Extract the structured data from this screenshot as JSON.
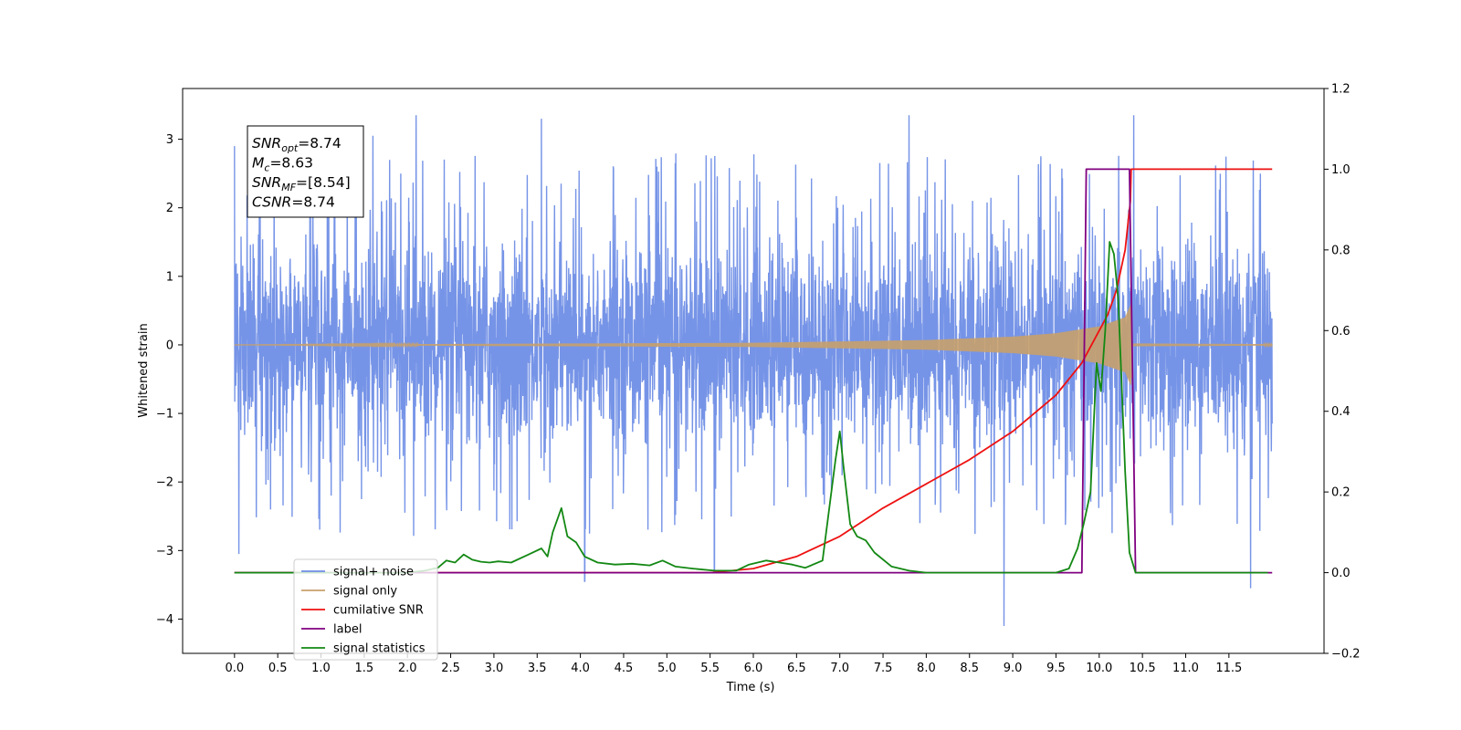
{
  "chart_data": {
    "type": "line",
    "title": "",
    "xlabel": "Time (s)",
    "ylabel": "Whitened strain",
    "xlim": [
      -0.6,
      12.6
    ],
    "ylim": [
      -4.5,
      3.74
    ],
    "ylim_right": [
      -0.2,
      1.2
    ],
    "grid": false,
    "x_ticks": [
      0.0,
      0.5,
      1.0,
      1.5,
      2.0,
      2.5,
      3.0,
      3.5,
      4.0,
      4.5,
      5.0,
      5.5,
      6.0,
      6.5,
      7.0,
      7.5,
      8.0,
      8.5,
      9.0,
      9.5,
      10.0,
      10.5,
      11.0,
      11.5
    ],
    "x_tick_labels": [
      "0.0",
      "0.5",
      "1.0",
      "1.5",
      "2.0",
      "2.5",
      "3.0",
      "3.5",
      "4.0",
      "4.5",
      "5.0",
      "5.5",
      "6.0",
      "6.5",
      "7.0",
      "7.5",
      "8.0",
      "8.5",
      "9.0",
      "9.5",
      "10.0",
      "10.5",
      "11.0",
      "11.5"
    ],
    "y_ticks": [
      3,
      2,
      1,
      0,
      -1,
      -2,
      -3,
      -4
    ],
    "y_tick_labels": [
      "3",
      "2",
      "1",
      "0",
      "−1",
      "−2",
      "−3",
      "−4"
    ],
    "y_right_ticks": [
      1.2,
      1.0,
      0.8,
      0.6,
      0.4,
      0.2,
      0.0,
      -0.2
    ],
    "y_right_tick_labels": [
      "1.2",
      "1.0",
      "0.8",
      "0.6",
      "0.4",
      "0.2",
      "0.0",
      "−0.2"
    ],
    "legend_position": "lower-left",
    "annotation": [
      {
        "base": "SNR",
        "sub": "opt",
        "value": "=8.74"
      },
      {
        "base": "M",
        "sub": "c",
        "value": "=8.63"
      },
      {
        "base": "SNR",
        "sub": "MF",
        "value": "=[8.54]"
      },
      {
        "base": "CSNR",
        "sub": "",
        "value": "=8.74"
      }
    ],
    "series": [
      {
        "name": "signal+ noise",
        "color": "#6f8ee6",
        "axis": "left",
        "kind": "noise",
        "x_range": [
          0.0,
          12.0
        ],
        "typical_amplitude": 1.6,
        "spike_points": [
          [
            0.0,
            2.9
          ],
          [
            0.05,
            -3.05
          ],
          [
            1.6,
            3.05
          ],
          [
            2.1,
            3.35
          ],
          [
            3.55,
            3.3
          ],
          [
            4.05,
            -3.45
          ],
          [
            5.55,
            -3.3
          ],
          [
            7.8,
            3.35
          ],
          [
            8.9,
            -4.1
          ],
          [
            10.4,
            3.35
          ],
          [
            11.75,
            -3.55
          ]
        ]
      },
      {
        "name": "signal only",
        "color": "#c8a06c",
        "axis": "left",
        "kind": "chirp",
        "x_range": [
          0.0,
          12.0
        ],
        "envelope": [
          [
            0.0,
            0.0
          ],
          [
            6.0,
            0.03
          ],
          [
            8.0,
            0.07
          ],
          [
            9.0,
            0.12
          ],
          [
            9.5,
            0.17
          ],
          [
            10.0,
            0.27
          ],
          [
            10.3,
            0.4
          ],
          [
            10.37,
            0.6
          ],
          [
            10.38,
            0.02
          ],
          [
            12.0,
            0.01
          ]
        ]
      },
      {
        "name": "cumilative SNR",
        "color": "#ee1111",
        "axis": "right",
        "x": [
          0.0,
          5.5,
          6.0,
          6.5,
          7.0,
          7.5,
          8.0,
          8.5,
          9.0,
          9.5,
          9.8,
          10.0,
          10.1,
          10.2,
          10.3,
          10.36,
          10.37,
          12.0
        ],
        "values": [
          0.0,
          0.0,
          0.01,
          0.04,
          0.09,
          0.16,
          0.22,
          0.28,
          0.35,
          0.44,
          0.52,
          0.6,
          0.64,
          0.7,
          0.8,
          0.92,
          1.0,
          1.0
        ]
      },
      {
        "name": "label",
        "color": "#800080",
        "axis": "right",
        "x": [
          0.0,
          9.8,
          9.85,
          10.35,
          10.42,
          12.0
        ],
        "values": [
          0.0,
          0.0,
          1.0,
          1.0,
          0.0,
          0.0
        ]
      },
      {
        "name": "signal statistics",
        "color": "#138813",
        "axis": "right",
        "x": [
          0.0,
          2.0,
          2.2,
          2.35,
          2.45,
          2.55,
          2.65,
          2.75,
          2.85,
          2.95,
          3.05,
          3.2,
          3.4,
          3.55,
          3.62,
          3.68,
          3.78,
          3.85,
          3.95,
          4.05,
          4.2,
          4.4,
          4.6,
          4.8,
          4.95,
          5.1,
          5.3,
          5.55,
          5.8,
          5.95,
          6.05,
          6.15,
          6.3,
          6.45,
          6.6,
          6.8,
          6.95,
          7.0,
          7.05,
          7.12,
          7.2,
          7.3,
          7.4,
          7.6,
          7.8,
          8.0,
          9.5,
          9.65,
          9.75,
          9.82,
          9.9,
          9.97,
          10.02,
          10.07,
          10.12,
          10.17,
          10.22,
          10.3,
          10.35,
          10.42,
          10.5,
          11.0,
          11.95
        ],
        "values": [
          0.0,
          0.0,
          0.005,
          0.012,
          0.03,
          0.025,
          0.045,
          0.032,
          0.027,
          0.025,
          0.028,
          0.025,
          0.045,
          0.06,
          0.04,
          0.1,
          0.16,
          0.09,
          0.075,
          0.04,
          0.025,
          0.02,
          0.022,
          0.018,
          0.03,
          0.015,
          0.01,
          0.005,
          0.005,
          0.02,
          0.025,
          0.03,
          0.025,
          0.02,
          0.012,
          0.03,
          0.28,
          0.35,
          0.25,
          0.12,
          0.09,
          0.08,
          0.05,
          0.015,
          0.005,
          0.0,
          0.0,
          0.01,
          0.06,
          0.12,
          0.2,
          0.52,
          0.45,
          0.6,
          0.82,
          0.79,
          0.68,
          0.25,
          0.05,
          0.0,
          0.0,
          0.0,
          0.0
        ]
      }
    ]
  }
}
